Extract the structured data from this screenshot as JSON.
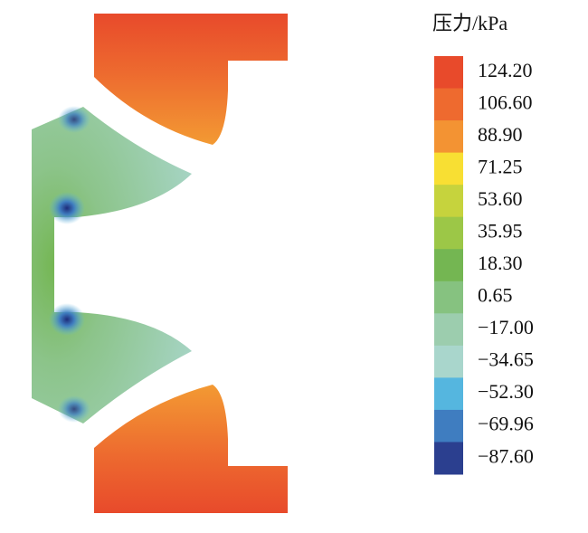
{
  "chart_data": {
    "type": "contour",
    "colorbar": {
      "title": "压力/kPa",
      "levels": [
        {
          "value": 124.2,
          "label": "124.20"
        },
        {
          "value": 106.6,
          "label": "106.60"
        },
        {
          "value": 88.9,
          "label": "88.90"
        },
        {
          "value": 71.25,
          "label": "71.25"
        },
        {
          "value": 53.6,
          "label": "53.60"
        },
        {
          "value": 35.95,
          "label": "35.95"
        },
        {
          "value": 18.3,
          "label": "18.30"
        },
        {
          "value": 0.65,
          "label": "0.65"
        },
        {
          "value": -17,
          "label": "−17.00"
        },
        {
          "value": -34.65,
          "label": "−34.65"
        },
        {
          "value": -52.3,
          "label": "−52.30"
        },
        {
          "value": -69.96,
          "label": "−69.96"
        },
        {
          "value": -87.6,
          "label": "−87.60"
        }
      ],
      "colors": [
        "#e84a2b",
        "#ee6a2f",
        "#f39333",
        "#f8df33",
        "#c6d33d",
        "#9cc747",
        "#74b652",
        "#86c280",
        "#9ccdae",
        "#a9d6cc",
        "#55b6df",
        "#3f7dc0",
        "#2b3f8f"
      ]
    }
  }
}
